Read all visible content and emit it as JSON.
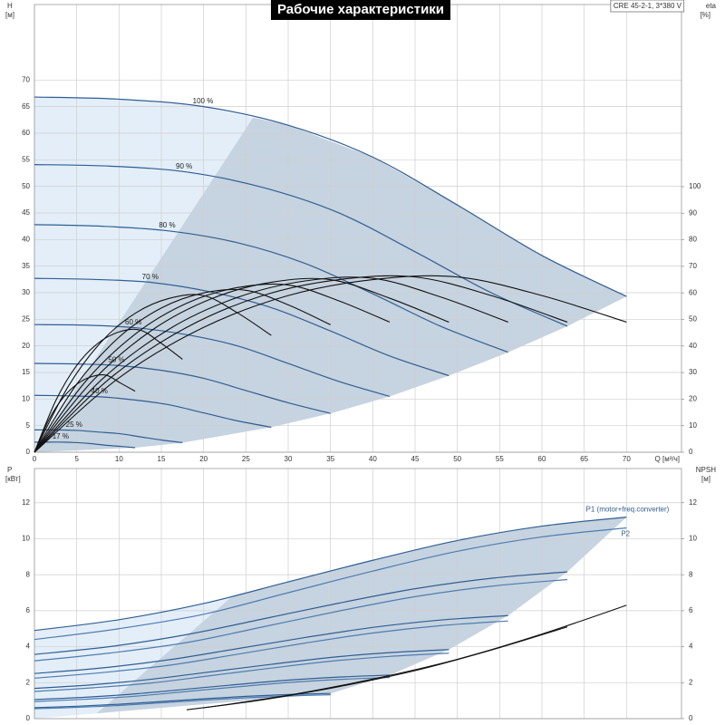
{
  "chart_data": [
    {
      "type": "line",
      "title": "Рабочие характеристики",
      "subtitle": "CRE 45-2-1, 3*380 V",
      "ylabel": "H",
      "yunit": "[м]",
      "y2label": "eta",
      "y2unit": "[%]",
      "xlabel": "Q [м³/ч]",
      "xlim": [
        0,
        76.5
      ],
      "xticks": [
        0,
        5,
        10,
        15,
        20,
        25,
        30,
        35,
        40,
        45,
        50,
        55,
        60,
        65,
        70
      ],
      "ylim": [
        0,
        84.2
      ],
      "yticks": [
        0,
        5,
        10,
        15,
        20,
        25,
        30,
        35,
        40,
        45,
        50,
        55,
        60,
        65,
        70
      ],
      "y2lim": [
        0,
        168.6
      ],
      "y2ticks": [
        0,
        10,
        20,
        30,
        40,
        50,
        60,
        70,
        80,
        90,
        100
      ],
      "grid": true,
      "series": [
        {
          "name": "100 %",
          "color": "#2f5f93",
          "x": [
            0,
            10,
            20,
            30,
            40,
            50,
            60,
            70
          ],
          "values": [
            66.8,
            66.4,
            65,
            61.5,
            55.5,
            46.5,
            37,
            29.3
          ]
        },
        {
          "name": "90 %",
          "color": "#2f5f93",
          "x": [
            0,
            9,
            18,
            27,
            36,
            45,
            54,
            63
          ],
          "values": [
            54.1,
            53.8,
            52.7,
            49.8,
            45,
            37.7,
            30,
            23.7
          ]
        },
        {
          "name": "80 %",
          "color": "#2f5f93",
          "x": [
            0,
            8,
            16,
            24,
            32,
            40,
            48,
            56
          ],
          "values": [
            42.8,
            42.5,
            41.6,
            39.4,
            35.5,
            29.8,
            23.7,
            18.8
          ]
        },
        {
          "name": "70 %",
          "color": "#2f5f93",
          "x": [
            0,
            7,
            14,
            21,
            28,
            35,
            42,
            49
          ],
          "values": [
            32.7,
            32.5,
            31.9,
            30.1,
            27.2,
            22.8,
            18.1,
            14.4
          ]
        },
        {
          "name": "60 %",
          "color": "#2f5f93",
          "x": [
            0,
            6,
            12,
            18,
            24,
            30,
            36,
            42
          ],
          "values": [
            24,
            23.9,
            23.4,
            22.1,
            20,
            16.7,
            13.3,
            10.5
          ]
        },
        {
          "name": "50 %",
          "color": "#2f5f93",
          "x": [
            0,
            5,
            10,
            15,
            20,
            25,
            30,
            35
          ],
          "values": [
            16.7,
            16.6,
            16.3,
            15.4,
            13.9,
            11.6,
            9.3,
            7.3
          ]
        },
        {
          "name": "40 %",
          "color": "#2f5f93",
          "x": [
            0,
            4,
            8,
            12,
            16,
            20,
            24,
            28
          ],
          "values": [
            10.7,
            10.6,
            10.4,
            9.8,
            8.9,
            7.4,
            5.9,
            4.7
          ]
        },
        {
          "name": "25 %",
          "color": "#2f5f93",
          "x": [
            0,
            2.5,
            5,
            7.5,
            10,
            12.5,
            15,
            17.5
          ],
          "values": [
            4.2,
            4.2,
            4.1,
            3.8,
            3.5,
            2.9,
            2.3,
            1.8
          ]
        },
        {
          "name": "17 %",
          "color": "#2f5f93",
          "x": [
            0,
            1.7,
            3.4,
            5.1,
            6.8,
            8.5,
            10.2,
            11.9
          ],
          "values": [
            1.9,
            1.9,
            1.9,
            1.8,
            1.6,
            1.3,
            1.1,
            0.85
          ]
        },
        {
          "color": "#111111",
          "axis": "y2",
          "x": [
            0,
            10,
            20,
            30,
            40,
            50,
            60,
            70
          ],
          "values": [
            0,
            28,
            47,
            59,
            65,
            66,
            59,
            49
          ]
        },
        {
          "color": "#111111",
          "axis": "y2",
          "x": [
            0,
            9,
            18,
            27,
            36,
            45,
            54,
            63
          ],
          "values": [
            0,
            28,
            47,
            59,
            65,
            66,
            59,
            49
          ]
        },
        {
          "color": "#111111",
          "axis": "y2",
          "x": [
            0,
            8,
            16,
            24,
            32,
            40,
            48,
            56
          ],
          "values": [
            0,
            27.5,
            46.5,
            58.3,
            64.5,
            65.5,
            58.5,
            49
          ]
        },
        {
          "color": "#111111",
          "axis": "y2",
          "x": [
            0,
            7,
            14,
            21,
            28,
            35,
            42,
            49
          ],
          "values": [
            0,
            27.3,
            46.2,
            57.9,
            64,
            65,
            58,
            49
          ]
        },
        {
          "color": "#111111",
          "axis": "y2",
          "x": [
            0,
            6,
            12,
            18,
            24,
            30,
            36,
            42
          ],
          "values": [
            0,
            26.5,
            44.7,
            56.1,
            62,
            63,
            57,
            49
          ]
        },
        {
          "color": "#111111",
          "axis": "y2",
          "x": [
            0,
            5,
            10,
            15,
            20,
            25,
            30,
            35
          ],
          "values": [
            0,
            25.6,
            43.3,
            54.3,
            60,
            61,
            55.5,
            48
          ]
        },
        {
          "color": "#111111",
          "axis": "y2",
          "x": [
            0,
            4,
            8,
            12,
            16,
            20,
            24,
            28
          ],
          "values": [
            0,
            24.8,
            41.9,
            52.5,
            58,
            59,
            52.5,
            44
          ]
        },
        {
          "color": "#111111",
          "axis": "y2",
          "x": [
            0,
            2.5,
            5,
            7.5,
            10,
            12.5,
            15,
            17.5
          ],
          "values": [
            0,
            19.3,
            32.7,
            41,
            45.3,
            46,
            41,
            35
          ]
        },
        {
          "color": "#111111",
          "axis": "y2",
          "x": [
            0,
            1.7,
            3.4,
            5.1,
            6.8,
            8.5,
            10.2,
            11.9
          ],
          "values": [
            0,
            12.2,
            20.6,
            25.8,
            28.5,
            29,
            26,
            23
          ]
        }
      ]
    },
    {
      "type": "line",
      "ylabel": "P",
      "yunit": "[кВт]",
      "y2label": "NPSH",
      "y2unit": "[м]",
      "xlim": [
        0,
        76.5
      ],
      "ylim": [
        0,
        13.9
      ],
      "yticks": [
        0,
        2,
        4,
        6,
        8,
        10,
        12
      ],
      "y2lim": [
        0,
        13.9
      ],
      "y2ticks": [
        0,
        2,
        4,
        6,
        8,
        10,
        12
      ],
      "grid": true,
      "series": [
        {
          "name": "P1 (motor+freq.converter)",
          "color": "#2f5f93",
          "x": [
            0,
            10,
            20,
            30,
            40,
            50,
            60,
            70
          ],
          "values": [
            4.9,
            5.5,
            6.4,
            7.6,
            8.8,
            9.9,
            10.7,
            11.2
          ]
        },
        {
          "color": "#2f5f93",
          "x": [
            0,
            9,
            18,
            27,
            36,
            45,
            54,
            63
          ],
          "values": [
            3.57,
            4.01,
            4.67,
            5.54,
            6.42,
            7.22,
            7.8,
            8.16
          ]
        },
        {
          "color": "#2f5f93",
          "x": [
            0,
            8,
            16,
            24,
            32,
            40,
            48,
            56
          ],
          "values": [
            2.51,
            2.82,
            3.28,
            3.89,
            4.51,
            5.07,
            5.48,
            5.73
          ]
        },
        {
          "color": "#2f5f93",
          "x": [
            0,
            7,
            14,
            21,
            28,
            35,
            42,
            49
          ],
          "values": [
            1.68,
            1.89,
            2.2,
            2.61,
            3.02,
            3.4,
            3.67,
            3.84
          ]
        },
        {
          "color": "#2f5f93",
          "x": [
            0,
            6,
            12,
            18,
            24,
            30,
            36,
            42
          ],
          "values": [
            1.06,
            1.19,
            1.38,
            1.64,
            1.9,
            2.14,
            2.31,
            2.42
          ]
        },
        {
          "color": "#2f5f93",
          "x": [
            0,
            5,
            10,
            15,
            20,
            25,
            30,
            35
          ],
          "values": [
            0.61,
            0.69,
            0.8,
            0.95,
            1.1,
            1.24,
            1.34,
            1.4
          ]
        },
        {
          "name": "P2",
          "color": "#4d7db0",
          "x": [
            0,
            10,
            20,
            30,
            40,
            50,
            60,
            70
          ],
          "values": [
            4.4,
            5.0,
            5.8,
            7.0,
            8.2,
            9.3,
            10.1,
            10.6
          ]
        },
        {
          "color": "#4d7db0",
          "x": [
            0,
            9,
            18,
            27,
            36,
            45,
            54,
            63
          ],
          "values": [
            3.21,
            3.65,
            4.23,
            5.1,
            5.98,
            6.78,
            7.36,
            7.73
          ]
        },
        {
          "color": "#4d7db0",
          "x": [
            0,
            8,
            16,
            24,
            32,
            40,
            48,
            56
          ],
          "values": [
            2.25,
            2.56,
            2.97,
            3.58,
            4.2,
            4.76,
            5.17,
            5.43
          ]
        },
        {
          "color": "#4d7db0",
          "x": [
            0,
            7,
            14,
            21,
            28,
            35,
            42,
            49
          ],
          "values": [
            1.51,
            1.72,
            1.99,
            2.4,
            2.81,
            3.19,
            3.46,
            3.64
          ]
        },
        {
          "color": "#4d7db0",
          "x": [
            0,
            6,
            12,
            18,
            24,
            30,
            36,
            42
          ],
          "values": [
            0.95,
            1.08,
            1.25,
            1.51,
            1.77,
            2.01,
            2.18,
            2.29
          ]
        },
        {
          "color": "#4d7db0",
          "x": [
            0,
            5,
            10,
            15,
            20,
            25,
            30,
            35
          ],
          "values": [
            0.55,
            0.63,
            0.73,
            0.88,
            1.03,
            1.16,
            1.26,
            1.33
          ]
        },
        {
          "color": "#111111",
          "axis": "y2",
          "x": [
            20,
            30,
            40,
            50,
            60,
            70
          ],
          "values": [
            0.6,
            1.3,
            2.2,
            3.3,
            4.7,
            6.3
          ]
        },
        {
          "color": "#111111",
          "axis": "y2",
          "x": [
            18,
            27,
            36,
            45,
            54,
            63
          ],
          "values": [
            0.49,
            1.05,
            1.78,
            2.67,
            3.81,
            5.1
          ]
        }
      ]
    }
  ]
}
